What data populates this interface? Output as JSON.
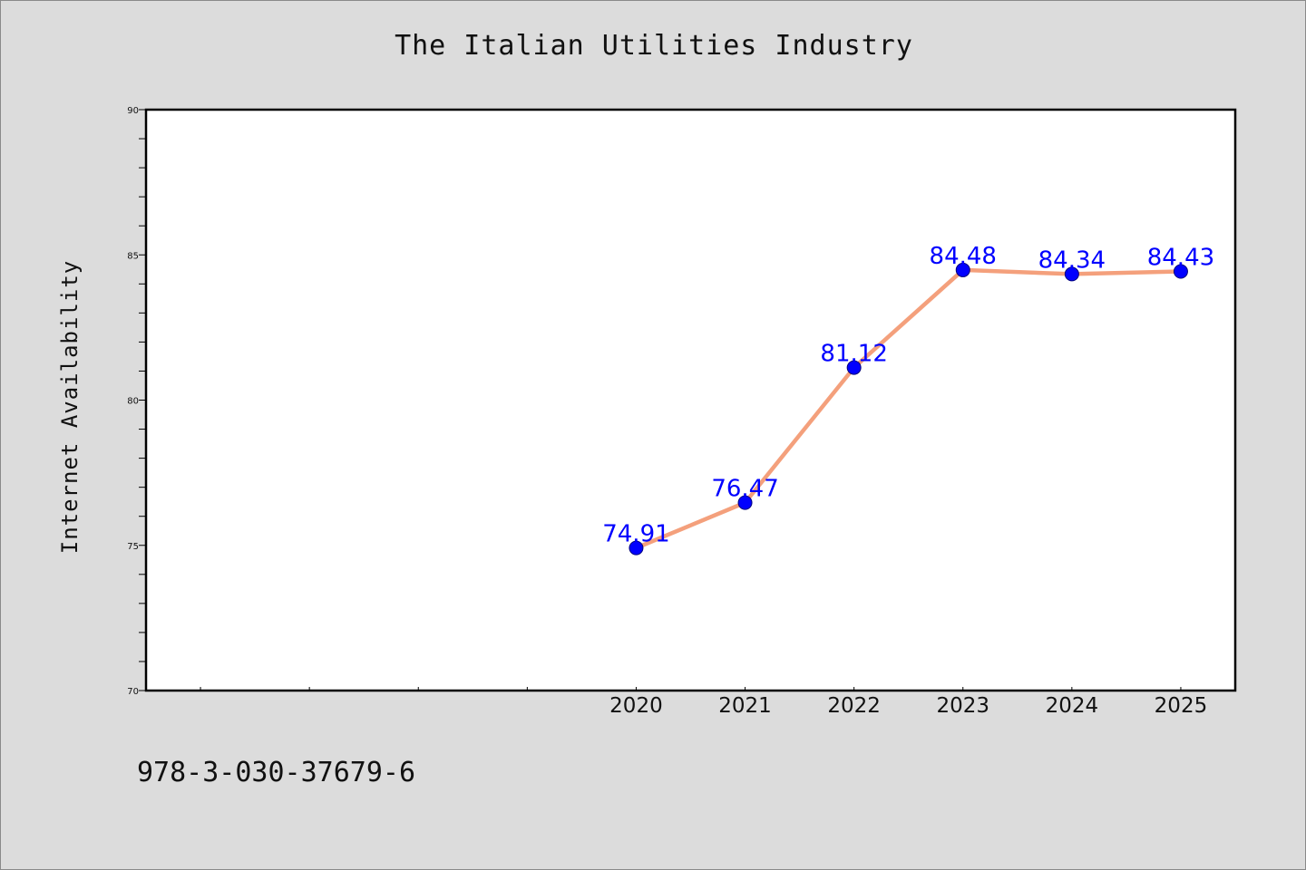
{
  "chart_data": {
    "type": "line",
    "title": "The Italian Utilities Industry",
    "ylabel": "Internet Availability",
    "xlabel": "",
    "x": [
      "2020",
      "2021",
      "2022",
      "2023",
      "2024",
      "2025"
    ],
    "x_positions": [
      2020,
      2021,
      2022,
      2023,
      2024,
      2025
    ],
    "xlim": [
      2015.5,
      2025.5
    ],
    "ylim": [
      70,
      90
    ],
    "yticks": [
      70,
      75,
      80,
      85,
      90
    ],
    "series": [
      {
        "values": [
          74.91,
          76.47,
          81.12,
          84.48,
          84.34,
          84.43
        ],
        "labels": [
          "74.91",
          "76.47",
          "81.12",
          "84.48",
          "84.34",
          "84.43"
        ]
      }
    ],
    "grid": false,
    "line_color": "#f4a07c",
    "marker_color": "#0000ff",
    "label_color": "#0000ff"
  },
  "footer": {
    "isbn": "978-3-030-37679-6"
  }
}
